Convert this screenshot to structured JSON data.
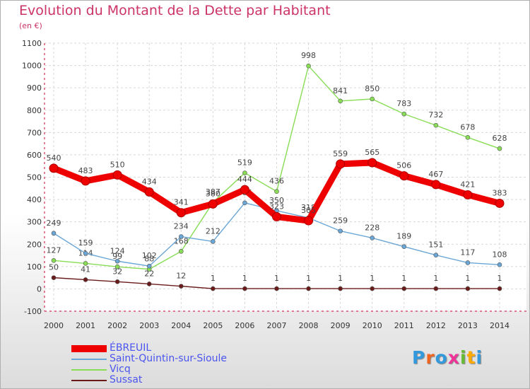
{
  "header": {
    "title": "Evolution du Montant de la Dette par Habitant",
    "unit": "(en €)"
  },
  "logo": {
    "text": "Proxiti"
  },
  "colors": {
    "title": "#cc3366",
    "axis": "#cc0033",
    "legend_text": "#4a55ee"
  },
  "chart_data": {
    "type": "line",
    "title": "Evolution du Montant de la Dette par Habitant",
    "ylabel": "(en €)",
    "xlabel": "",
    "x": [
      "2000",
      "2001",
      "2002",
      "2003",
      "2004",
      "2005",
      "2006",
      "2007",
      "2008",
      "2009",
      "2010",
      "2011",
      "2012",
      "2013",
      "2014"
    ],
    "ylim": [
      -100,
      1100
    ],
    "yticks": [
      -100,
      0,
      100,
      200,
      300,
      400,
      500,
      600,
      700,
      800,
      900,
      1000,
      1100
    ],
    "grid": true,
    "legend_position": "bottom-left",
    "series": [
      {
        "name": "Sussat",
        "color": "#6b1a1a",
        "values": [
          50,
          41,
          32,
          22,
          12,
          1,
          1,
          1,
          1,
          1,
          1,
          1,
          1,
          1,
          1
        ]
      },
      {
        "name": "Vicq",
        "color": "#88dd55",
        "values": [
          127,
          114,
          99,
          88,
          168,
          387,
          519,
          436,
          998,
          841,
          850,
          783,
          732,
          678,
          628
        ]
      },
      {
        "name": "Saint-Quintin-sur-Sioule",
        "color": "#6aa6d6",
        "values": [
          249,
          159,
          124,
          102,
          234,
          212,
          385,
          350,
          318,
          259,
          228,
          189,
          151,
          117,
          108
        ]
      },
      {
        "name": "ÉBREUIL",
        "color": "#ee0000",
        "values": [
          540,
          483,
          510,
          434,
          341,
          380,
          444,
          323,
          305,
          559,
          565,
          506,
          467,
          421,
          383
        ]
      }
    ],
    "legend_order": [
      "ÉBREUIL",
      "Saint-Quintin-sur-Sioule",
      "Vicq",
      "Sussat"
    ]
  }
}
